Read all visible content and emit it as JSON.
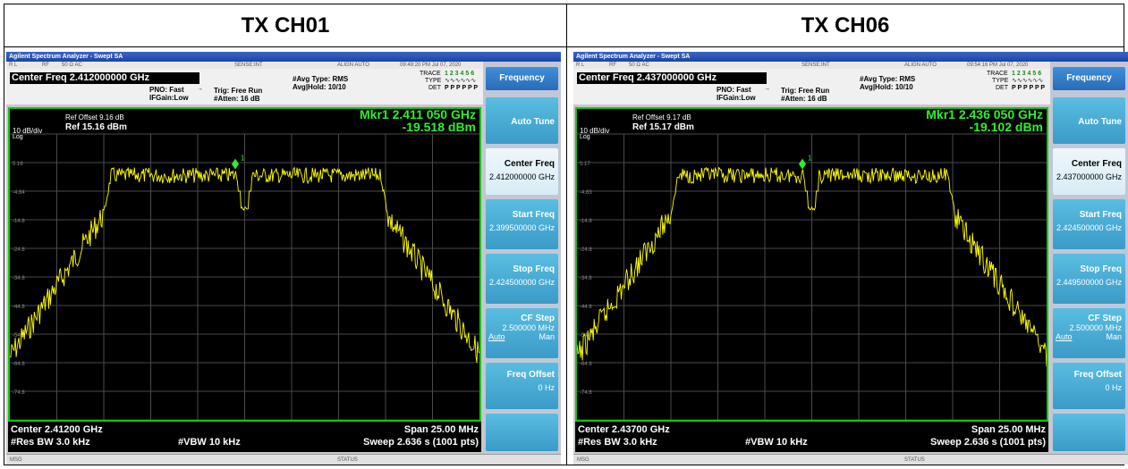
{
  "headers": [
    "TX CH01",
    "TX CH06"
  ],
  "colors": {
    "trace": "#ffff00",
    "marker": "#2cf02c",
    "frame": "#15c21a"
  },
  "panels": [
    {
      "title": "Agilent Spectrum Analyzer - Swept SA",
      "status": {
        "rl": "R L",
        "rf": "RF",
        "ohm": "50 Ω AC",
        "sense": "SENSE:INT",
        "align": "ALIGN AUTO",
        "time": "09:49:20 PM Jul 07, 2020"
      },
      "center_freq_title": "Center Freq 2.412000000 GHz",
      "pno": "PNO: Fast",
      "ifgain": "IFGain:Low",
      "trig": "Trig: Free Run",
      "atten": "#Atten: 16 dB",
      "avg_type": "#Avg Type: RMS",
      "avg_hold": "Avg|Hold: 10/10",
      "trace_lbl": "TRACE",
      "type_lbl": "TYPE",
      "det_lbl": "DET",
      "trace_val": "1 2 3 4 5 6",
      "det_val": "P P P P P P",
      "ref_offset": "Ref Offset 9.16 dB",
      "ref_level": "Ref 15.16 dBm",
      "div": "10 dB/div",
      "log": "Log",
      "mkr_freq": "Mkr1 2.411 050 GHz",
      "mkr_amp": "-19.518 dBm",
      "marker_label": "1",
      "ylabels": [
        "5.16",
        "-4.84",
        "-14.8",
        "-24.8",
        "-34.8",
        "-44.8",
        "-54.8",
        "-64.8",
        "-74.8"
      ],
      "center": "Center 2.41200 GHz",
      "span": "Span 25.00 MHz",
      "rbw": "#Res BW 3.0 kHz",
      "vbw": "#VBW 10 kHz",
      "sweep": "Sweep  2.636 s (1001 pts)",
      "msg": "MSG",
      "status_lbl": "STATUS",
      "softkeys": {
        "head": "Frequency",
        "auto_tune": "Auto Tune",
        "center_freq": "Center Freq",
        "center_freq_val": "2.412000000 GHz",
        "start_freq": "Start Freq",
        "start_freq_val": "2.399500000 GHz",
        "stop_freq": "Stop Freq",
        "stop_freq_val": "2.424500000 GHz",
        "cf_step": "CF Step",
        "cf_step_val": "2.500000 MHz",
        "auto": "Auto",
        "man": "Man",
        "freq_offset": "Freq Offset",
        "freq_offset_val": "0 Hz"
      }
    },
    {
      "title": "Agilent Spectrum Analyzer - Swept SA",
      "status": {
        "rl": "R L",
        "rf": "RF",
        "ohm": "50 Ω AC",
        "sense": "SENSE:INT",
        "align": "ALIGN AUTO",
        "time": "09:54:16 PM Jul 07, 2020"
      },
      "center_freq_title": "Center Freq 2.437000000 GHz",
      "pno": "PNO: Fast",
      "ifgain": "IFGain:Low",
      "trig": "Trig: Free Run",
      "atten": "#Atten: 16 dB",
      "avg_type": "#Avg Type: RMS",
      "avg_hold": "Avg|Hold: 10/10",
      "trace_lbl": "TRACE",
      "type_lbl": "TYPE",
      "det_lbl": "DET",
      "trace_val": "1 2 3 4 5 6",
      "det_val": "P P P P P P",
      "ref_offset": "Ref Offset 9.17 dB",
      "ref_level": "Ref 15.17 dBm",
      "div": "10 dB/div",
      "log": "Log",
      "mkr_freq": "Mkr1 2.436 050 GHz",
      "mkr_amp": "-19.102 dBm",
      "marker_label": "1",
      "ylabels": [
        "5.17",
        "-4.83",
        "-14.8",
        "-24.8",
        "-34.8",
        "-44.8",
        "-54.8",
        "-64.8",
        "-74.8"
      ],
      "center": "Center 2.43700 GHz",
      "span": "Span 25.00 MHz",
      "rbw": "#Res BW 3.0 kHz",
      "vbw": "#VBW 10 kHz",
      "sweep": "Sweep  2.636 s (1001 pts)",
      "msg": "MSG",
      "status_lbl": "STATUS",
      "softkeys": {
        "head": "Frequency",
        "auto_tune": "Auto Tune",
        "center_freq": "Center Freq",
        "center_freq_val": "2.437000000 GHz",
        "start_freq": "Start Freq",
        "start_freq_val": "2.424500000 GHz",
        "stop_freq": "Stop Freq",
        "stop_freq_val": "2.449500000 GHz",
        "cf_step": "CF Step",
        "cf_step_val": "2.500000 MHz",
        "auto": "Auto",
        "man": "Man",
        "freq_offset": "Freq Offset",
        "freq_offset_val": "0 Hz"
      }
    }
  ]
}
